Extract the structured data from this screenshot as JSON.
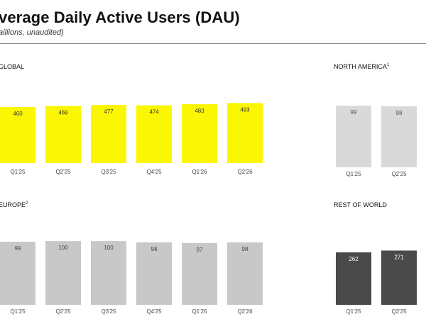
{
  "header": {
    "title": "verage Daily Active Users (DAU)",
    "subtitle": "aillions, unaudited)"
  },
  "colors": {
    "global": "#fbf704",
    "north_america": "#d9d9d9",
    "europe": "#c8c8c8",
    "rest_of_world": "#4a4a4a"
  },
  "chart_data": [
    {
      "type": "bar",
      "title": "GLOBAL",
      "title_sup": "",
      "categories": [
        "Q1'25",
        "Q2'25",
        "Q3'25",
        "Q4'25",
        "Q1'26",
        "Q2'26"
      ],
      "values": [
        460,
        469,
        477,
        474,
        483,
        493
      ],
      "data_labels": [
        "460",
        "469",
        "477",
        "474",
        "483",
        "493"
      ]
    },
    {
      "type": "bar",
      "title": "NORTH AMERICA",
      "title_sup": "1",
      "categories": [
        "Q1'25",
        "Q2'25"
      ],
      "values": [
        99,
        98
      ],
      "data_labels": [
        "99",
        "98"
      ]
    },
    {
      "type": "bar",
      "title": "EUROPE",
      "title_sup": "2",
      "categories": [
        "Q1'25",
        "Q2'25",
        "Q3'25",
        "Q4'25",
        "Q1'26",
        "Q2'26"
      ],
      "values": [
        99,
        100,
        100,
        98,
        97,
        98
      ],
      "data_labels": [
        "99",
        "100",
        "100",
        "98",
        "97",
        "98"
      ]
    },
    {
      "type": "bar",
      "title": "REST OF WORLD",
      "title_sup": "",
      "categories": [
        "Q1'25",
        "Q2'25"
      ],
      "values": [
        262,
        271
      ],
      "data_labels": [
        "262",
        "271"
      ]
    }
  ]
}
